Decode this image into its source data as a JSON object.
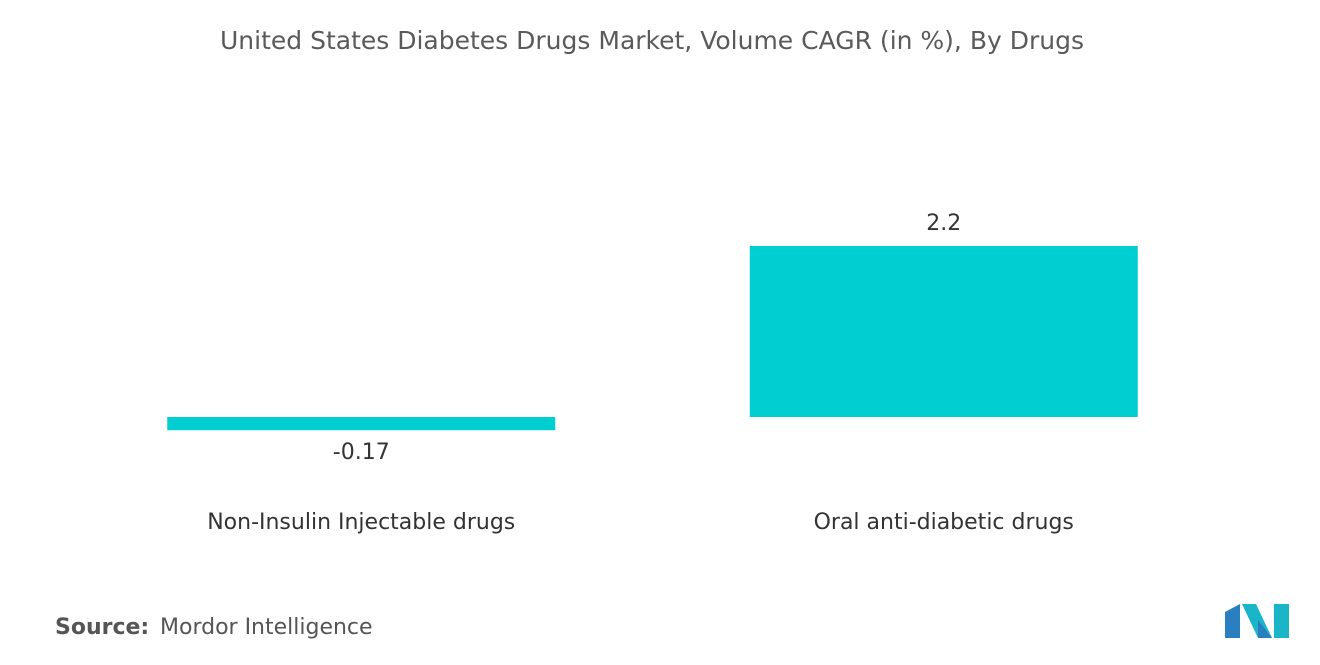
{
  "chart_data": {
    "type": "bar",
    "title": "United States Diabetes Drugs Market, Volume CAGR (in %),  By Drugs",
    "categories": [
      "Non-Insulin Injectable drugs",
      "Oral anti-diabetic drugs"
    ],
    "values": [
      -0.17,
      2.2
    ],
    "color": "#00ced1",
    "source_label": "Source:",
    "source": "Mordor Intelligence"
  }
}
